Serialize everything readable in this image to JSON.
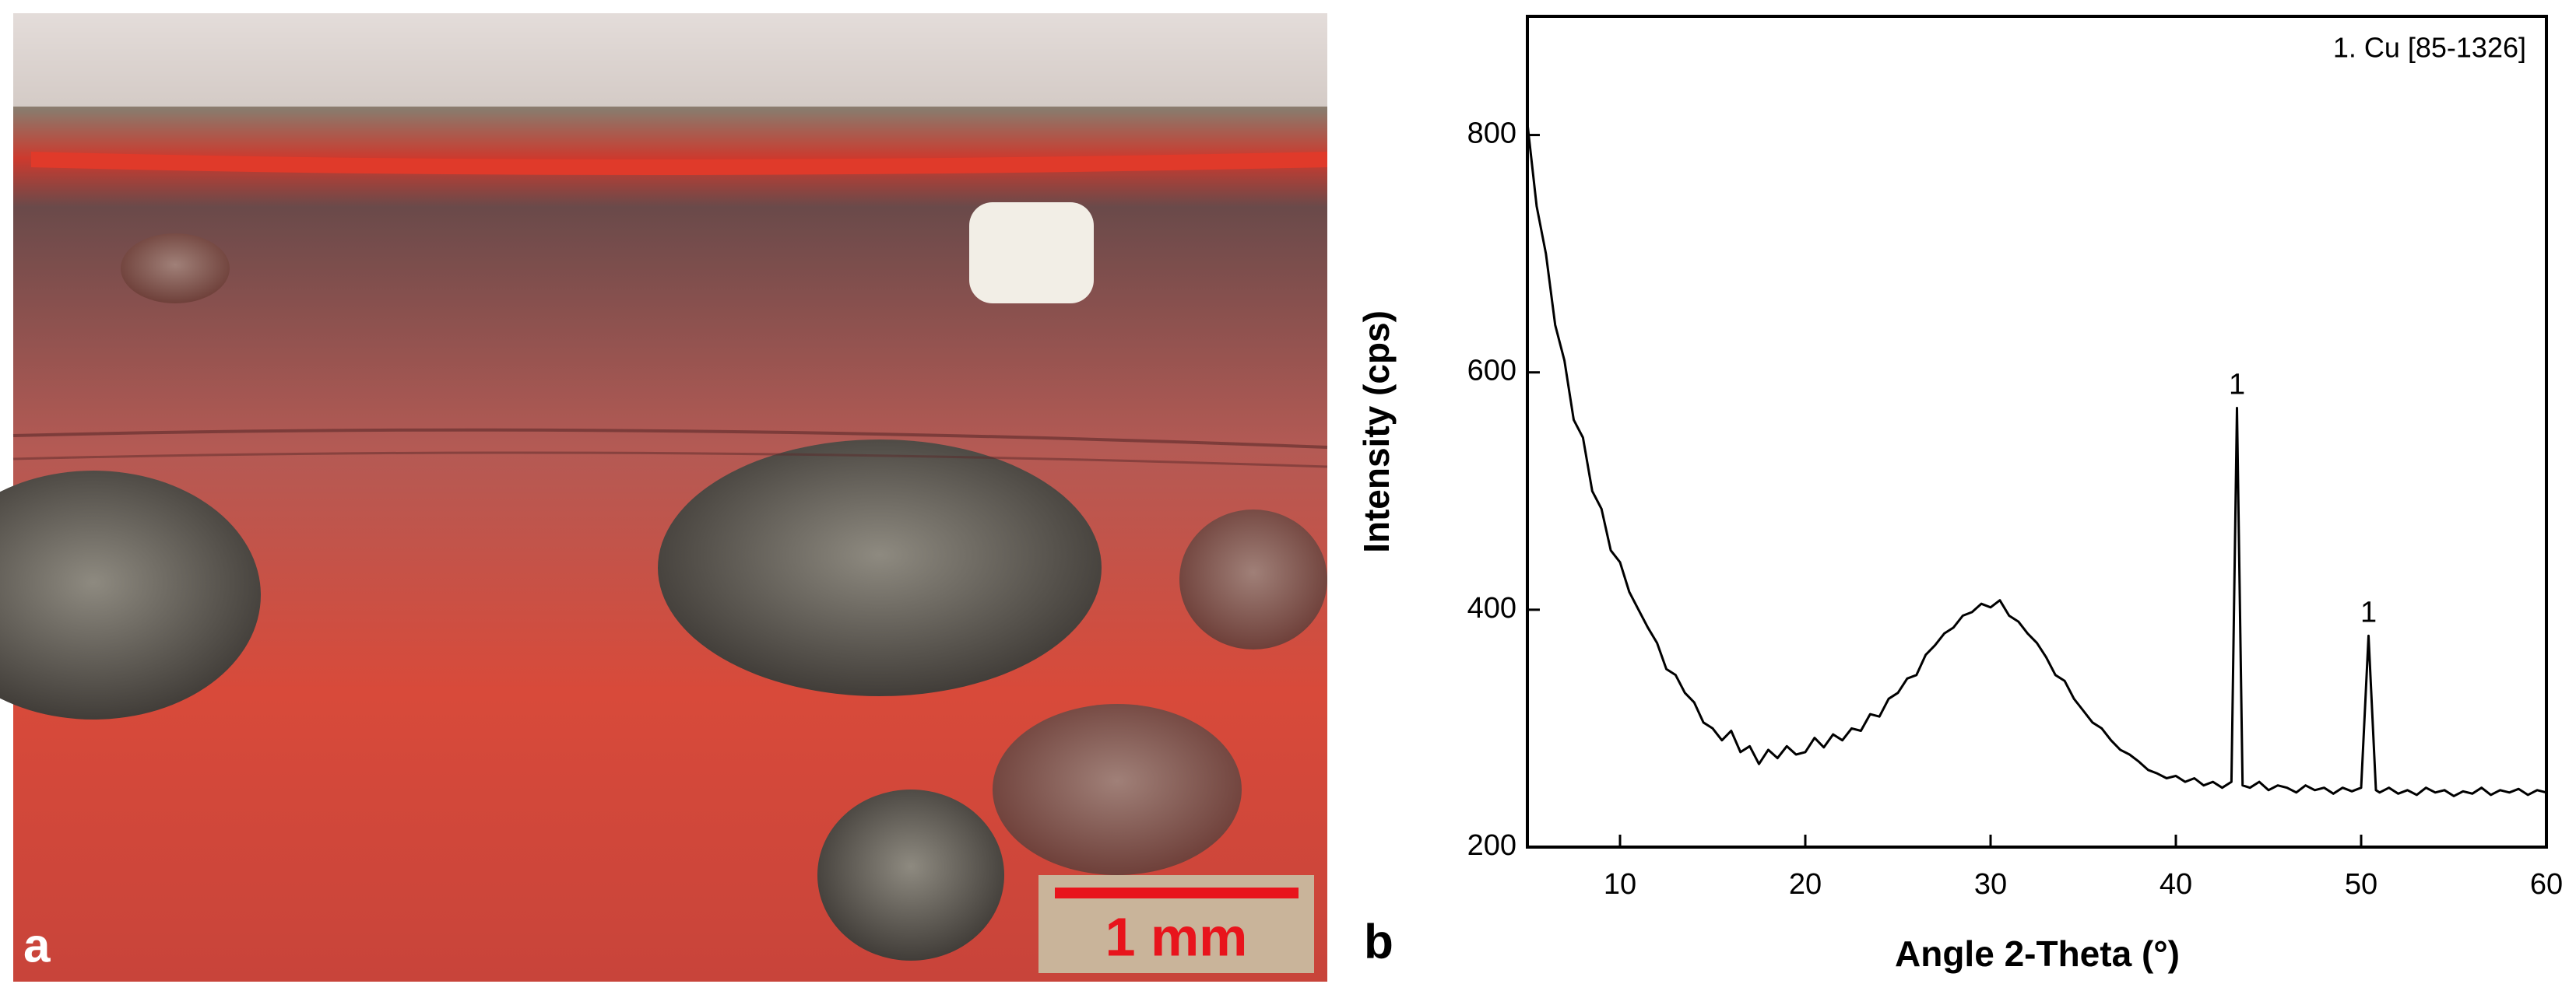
{
  "panel_labels": [
    "a",
    "b"
  ],
  "scale_bar": "1 mm",
  "chart_data": {
    "type": "line",
    "xlabel": "Angle 2-Theta (°)",
    "ylabel": "Intensity (cps)",
    "phase_label": "1. Cu [85-1326]",
    "color": "#000000",
    "xlim": [
      5,
      60
    ],
    "ylim": [
      200,
      900
    ],
    "xticks": [
      10,
      20,
      30,
      40,
      50,
      60
    ],
    "yticks": [
      200,
      400,
      600,
      800
    ],
    "grid": false,
    "annotations": [
      {
        "text": "1",
        "x": 43.3,
        "y": 570
      },
      {
        "text": "1",
        "x": 50.4,
        "y": 378
      }
    ],
    "x": [
      5,
      5.5,
      6,
      6.5,
      7,
      7.5,
      8,
      8.5,
      9,
      9.5,
      10,
      10.5,
      11,
      11.5,
      12,
      12.5,
      13,
      13.5,
      14,
      14.5,
      15,
      15.5,
      16,
      16.5,
      17,
      17.5,
      18,
      18.5,
      19,
      19.5,
      20,
      20.5,
      21,
      21.5,
      22,
      22.5,
      23,
      23.5,
      24,
      24.5,
      25,
      25.5,
      26,
      26.5,
      27,
      27.5,
      28,
      28.5,
      29,
      29.5,
      30,
      30.5,
      31,
      31.5,
      32,
      32.5,
      33,
      33.5,
      34,
      34.5,
      35,
      35.5,
      36,
      36.5,
      37,
      37.5,
      38,
      38.5,
      39,
      39.5,
      40,
      40.5,
      41,
      41.5,
      42,
      42.5,
      43,
      43.3,
      43.6,
      44,
      44.5,
      45,
      45.5,
      46,
      46.5,
      47,
      47.5,
      48,
      48.5,
      49,
      49.5,
      50,
      50.4,
      50.8,
      51,
      51.5,
      52,
      52.5,
      53,
      53.5,
      54,
      54.5,
      55,
      55.5,
      56,
      56.5,
      57,
      57.5,
      58,
      58.5,
      59,
      59.5,
      60
    ],
    "values": [
      810,
      740,
      700,
      640,
      610,
      560,
      545,
      500,
      485,
      450,
      440,
      415,
      400,
      385,
      372,
      350,
      345,
      330,
      322,
      305,
      300,
      290,
      298,
      280,
      285,
      270,
      282,
      275,
      285,
      278,
      280,
      292,
      284,
      295,
      290,
      300,
      298,
      312,
      310,
      325,
      330,
      342,
      345,
      362,
      370,
      380,
      385,
      395,
      398,
      405,
      402,
      408,
      395,
      390,
      380,
      372,
      360,
      345,
      340,
      325,
      315,
      305,
      300,
      290,
      282,
      278,
      272,
      265,
      262,
      258,
      260,
      255,
      258,
      252,
      255,
      250,
      255,
      570,
      252,
      250,
      255,
      248,
      252,
      250,
      246,
      252,
      248,
      250,
      245,
      250,
      247,
      250,
      378,
      248,
      246,
      250,
      245,
      248,
      244,
      250,
      246,
      248,
      243,
      247,
      245,
      250,
      244,
      248,
      246,
      249,
      244,
      248,
      246
    ]
  }
}
